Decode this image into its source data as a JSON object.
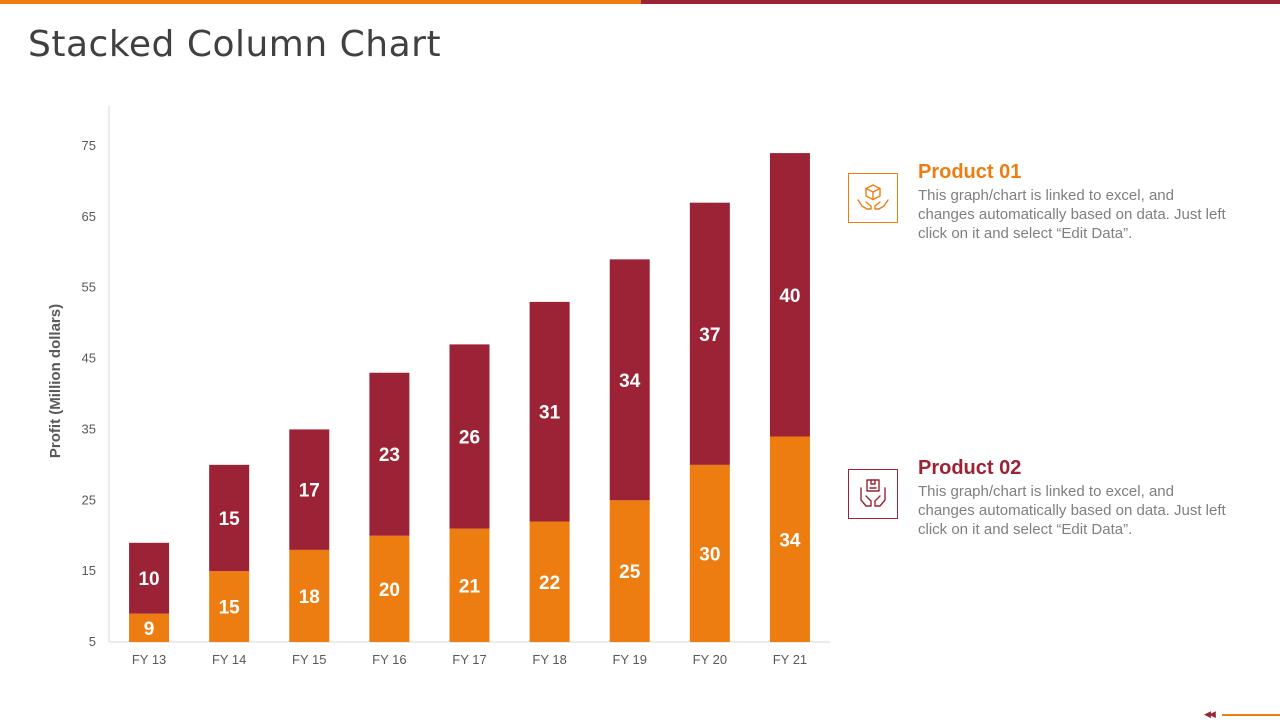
{
  "slide": {
    "title": "Stacked Column Chart"
  },
  "colors": {
    "product1": "#ee7d11",
    "product2": "#9c2236",
    "axis": "#d9d9d9",
    "text": "#595959"
  },
  "chart_data": {
    "type": "bar",
    "stacked": true,
    "title": "",
    "xlabel": "",
    "ylabel": "Profit  (Million dollars)",
    "ylim": [
      5,
      80
    ],
    "yticks": [
      5,
      15,
      25,
      35,
      45,
      55,
      65,
      75
    ],
    "categories": [
      "FY 13",
      "FY 14",
      "FY 15",
      "FY 16",
      "FY 17",
      "FY 18",
      "FY 19",
      "FY 20",
      "FY 21"
    ],
    "series": [
      {
        "name": "Product 01",
        "color": "#ee7d11",
        "values": [
          9,
          15,
          18,
          20,
          21,
          22,
          25,
          30,
          34
        ]
      },
      {
        "name": "Product 02",
        "color": "#9c2236",
        "values": [
          10,
          15,
          17,
          23,
          26,
          31,
          34,
          37,
          40
        ]
      }
    ],
    "grid": false,
    "legend": "right"
  },
  "legend": [
    {
      "title": "Product 01",
      "text": "This graph/chart  is linked to excel, and changes automatically based on data. Just left click on it and select “Edit Data”.",
      "icon": "hands-box-icon",
      "color": "#ee7d11"
    },
    {
      "title": "Product 02",
      "text": "This graph/chart  is linked to excel, and changes automatically based on data. Just left click on it and select “Edit Data”.",
      "icon": "hands-package-icon",
      "color": "#9c2236"
    }
  ]
}
